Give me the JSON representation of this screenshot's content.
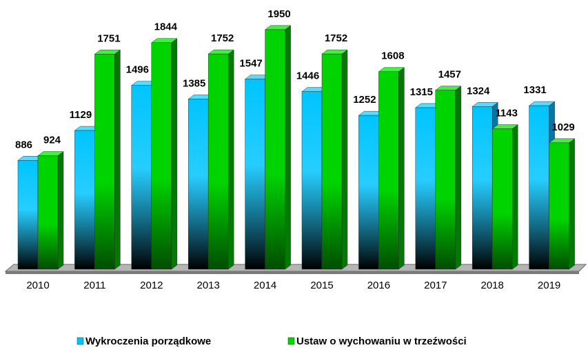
{
  "chart_data": {
    "type": "bar",
    "categories": [
      "2010",
      "2011",
      "2012",
      "2013",
      "2014",
      "2015",
      "2016",
      "2017",
      "2018",
      "2019"
    ],
    "series": [
      {
        "name": "Wykroczenia porządkowe",
        "color": "#00c4ff",
        "values": [
          886,
          1129,
          1496,
          1385,
          1547,
          1446,
          1252,
          1315,
          1324,
          1331
        ]
      },
      {
        "name": "Ustaw o wychowaniu w trzeźwości",
        "color": "#00d400",
        "values": [
          924,
          1751,
          1844,
          1752,
          1950,
          1752,
          1608,
          1457,
          1143,
          1029
        ]
      }
    ],
    "ylim": [
      0,
      2000
    ],
    "legend": "bottom"
  }
}
